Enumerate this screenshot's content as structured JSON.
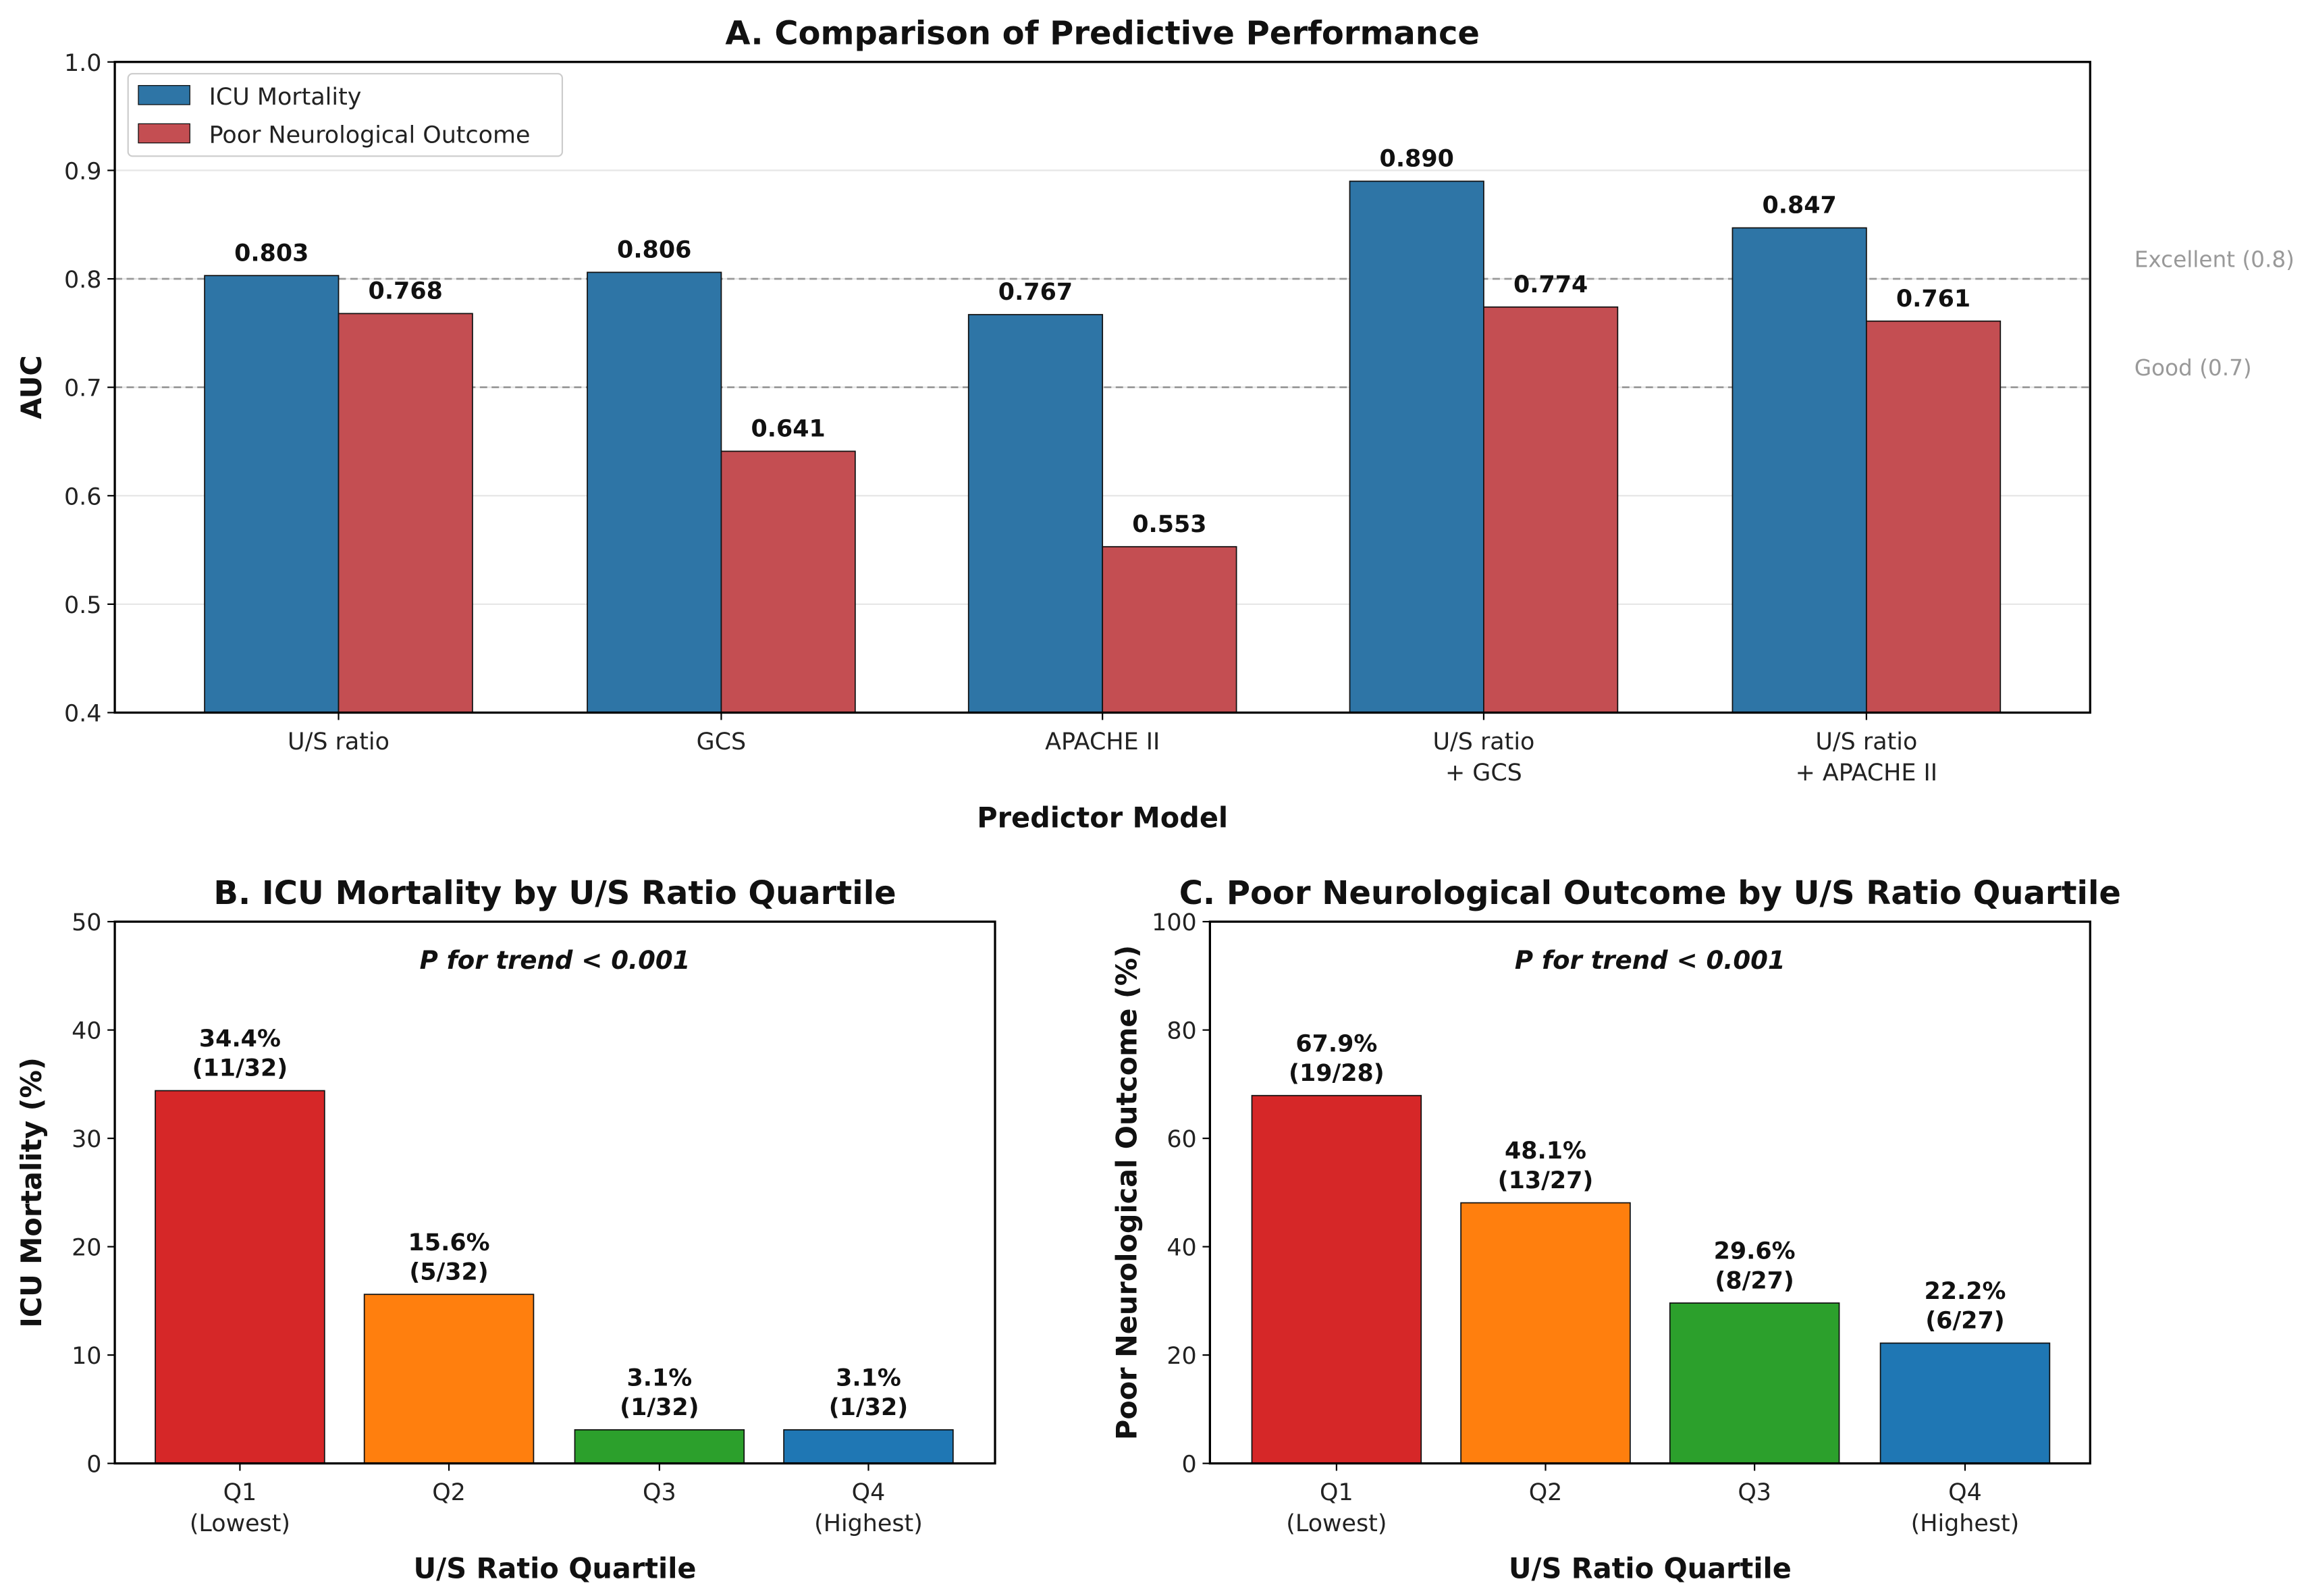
{
  "chart_data": [
    {
      "type": "bar",
      "title": "A. Comparison of Predictive Performance",
      "xlabel": "Predictor Model",
      "ylabel": "AUC",
      "ylim": [
        0.4,
        1.0
      ],
      "yticks": [
        "0.4",
        "0.5",
        "0.6",
        "0.7",
        "0.8",
        "0.9",
        "1.0"
      ],
      "grid": true,
      "legend_position": "top-left",
      "categories": [
        [
          "U/S ratio"
        ],
        [
          "GCS"
        ],
        [
          "APACHE II"
        ],
        [
          "U/S ratio",
          "+ GCS"
        ],
        [
          "U/S ratio",
          "+ APACHE II"
        ]
      ],
      "series": [
        {
          "name": "ICU Mortality",
          "color": "#2e75a6",
          "values": [
            0.803,
            0.806,
            0.767,
            0.89,
            0.847
          ],
          "labels": [
            "0.803",
            "0.806",
            "0.767",
            "0.890",
            "0.847"
          ]
        },
        {
          "name": "Poor Neurological Outcome",
          "color": "#c44e52",
          "values": [
            0.768,
            0.641,
            0.553,
            0.774,
            0.761
          ],
          "labels": [
            "0.768",
            "0.641",
            "0.553",
            "0.774",
            "0.761"
          ]
        }
      ],
      "reference_lines": [
        {
          "value": 0.8,
          "label": "Excellent (0.8)"
        },
        {
          "value": 0.7,
          "label": "Good (0.7)"
        }
      ]
    },
    {
      "type": "bar",
      "title": "B. ICU Mortality by U/S Ratio Quartile",
      "xlabel": "U/S Ratio Quartile",
      "ylabel": "ICU Mortality (%)",
      "ylim": [
        0,
        50
      ],
      "yticks": [
        "0",
        "10",
        "20",
        "30",
        "40",
        "50"
      ],
      "annotation": "P for trend < 0.001",
      "categories": [
        [
          "Q1",
          "(Lowest)"
        ],
        [
          "Q2"
        ],
        [
          "Q3"
        ],
        [
          "Q4",
          "(Highest)"
        ]
      ],
      "values": [
        34.4,
        15.6,
        3.1,
        3.1
      ],
      "labels": [
        [
          "34.4%",
          "(11/32)"
        ],
        [
          "15.6%",
          "(5/32)"
        ],
        [
          "3.1%",
          "(1/32)"
        ],
        [
          "3.1%",
          "(1/32)"
        ]
      ],
      "colors": [
        "#d62728",
        "#ff7f0e",
        "#2ca02c",
        "#1f77b4"
      ]
    },
    {
      "type": "bar",
      "title": "C. Poor Neurological Outcome by U/S Ratio Quartile",
      "xlabel": "U/S Ratio Quartile",
      "ylabel": "Poor Neurological Outcome (%)",
      "ylim": [
        0,
        100
      ],
      "yticks": [
        "0",
        "20",
        "40",
        "60",
        "80",
        "100"
      ],
      "annotation": "P for trend < 0.001",
      "categories": [
        [
          "Q1",
          "(Lowest)"
        ],
        [
          "Q2"
        ],
        [
          "Q3"
        ],
        [
          "Q4",
          "(Highest)"
        ]
      ],
      "values": [
        67.9,
        48.1,
        29.6,
        22.2
      ],
      "labels": [
        [
          "67.9%",
          "(19/28)"
        ],
        [
          "48.1%",
          "(13/27)"
        ],
        [
          "29.6%",
          "(8/27)"
        ],
        [
          "22.2%",
          "(6/27)"
        ]
      ],
      "colors": [
        "#d62728",
        "#ff7f0e",
        "#2ca02c",
        "#1f77b4"
      ]
    }
  ]
}
